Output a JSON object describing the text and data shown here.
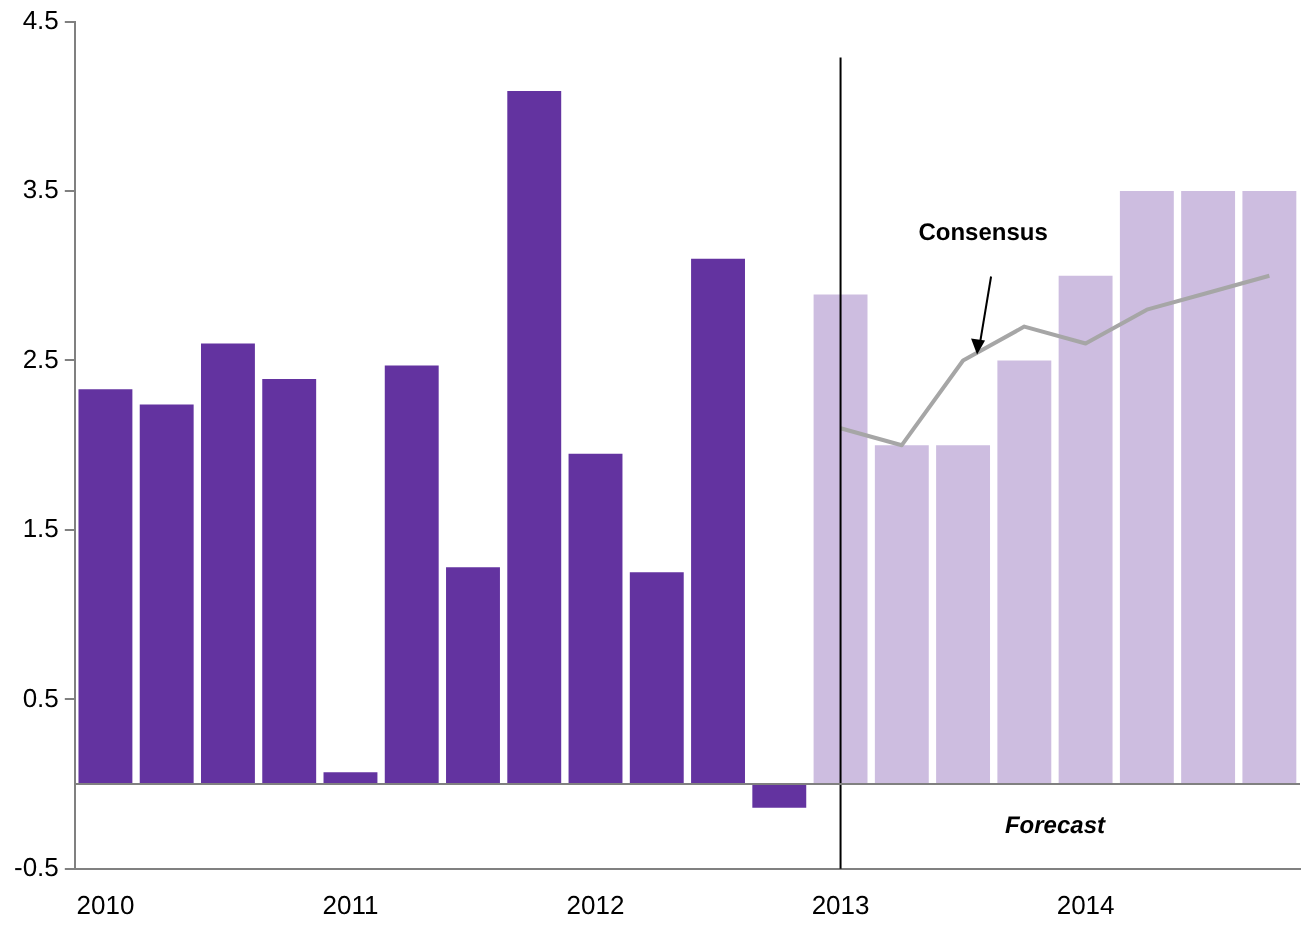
{
  "chart_data": {
    "type": "bar",
    "categories": [
      "2010",
      null,
      null,
      null,
      "2011",
      null,
      null,
      null,
      "2012",
      null,
      null,
      null,
      "2013",
      null,
      null,
      null,
      "2014",
      null,
      null,
      null
    ],
    "series": [
      {
        "colors": [
          "#6333a0",
          "#6333a0",
          "#6333a0",
          "#6333a0",
          "#6333a0",
          "#6333a0",
          "#6333a0",
          "#6333a0",
          "#6333a0",
          "#6333a0",
          "#6333a0",
          "#6333a0",
          "#cdbde0",
          "#cdbde0",
          "#cdbde0",
          "#cdbde0",
          "#cdbde0",
          "#cdbde0",
          "#cdbde0",
          "#cdbde0"
        ],
        "values": [
          2.33,
          2.24,
          2.6,
          2.39,
          0.07,
          2.47,
          1.28,
          4.09,
          1.95,
          1.25,
          3.1,
          -0.14,
          2.89,
          2.0,
          2.0,
          2.5,
          3.0,
          3.5,
          3.5,
          3.5
        ]
      },
      {
        "type": "line",
        "name": "Consensus",
        "color": "#a6a6a6",
        "values": [
          null,
          null,
          null,
          null,
          null,
          null,
          null,
          null,
          null,
          null,
          null,
          null,
          2.1,
          2.0,
          2.5,
          2.7,
          2.6,
          2.8,
          2.9,
          3.0
        ]
      }
    ],
    "ylim": [
      -0.5,
      4.5
    ],
    "yticks": [
      -0.5,
      0.5,
      1.5,
      2.5,
      3.5,
      4.5
    ],
    "ref_lines": [
      {
        "axis": "x",
        "value": "2013",
        "color": "#000000"
      },
      {
        "axis": "y",
        "value": 0,
        "color": "#808080"
      }
    ],
    "annotations": [
      "Forecast"
    ],
    "grid": false,
    "legend": false,
    "marker": "none"
  }
}
